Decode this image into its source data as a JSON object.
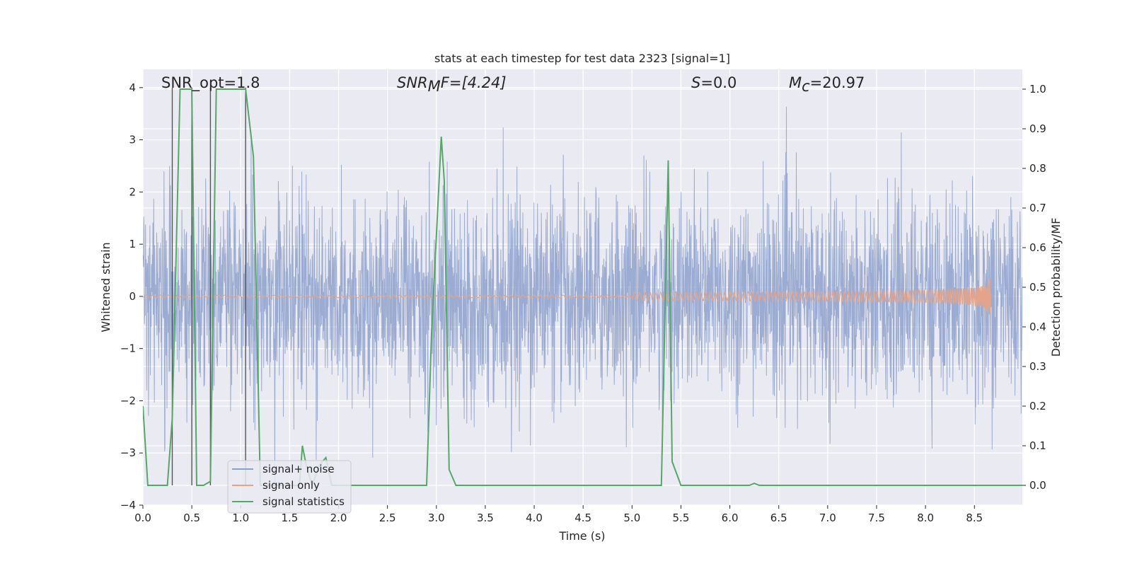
{
  "chart_data": {
    "type": "line",
    "title": "stats at each timestep for test data 2323 [signal=1]",
    "xlabel": "Time (s)",
    "ylabel_left": "Whitened strain",
    "ylabel_right": "Detection probability/MF",
    "xlim": [
      0.0,
      8.99
    ],
    "ylim_left": [
      -4.0,
      4.35
    ],
    "ylim_right": [
      -0.05,
      1.05
    ],
    "x_ticks": [
      0.0,
      0.5,
      1.0,
      1.5,
      2.0,
      2.5,
      3.0,
      3.5,
      4.0,
      4.5,
      5.0,
      5.5,
      6.0,
      6.5,
      7.0,
      7.5,
      8.0,
      8.5
    ],
    "x_tick_labels": [
      "0.0",
      "0.5",
      "1.0",
      "1.5",
      "2.0",
      "2.5",
      "3.0",
      "3.5",
      "4.0",
      "4.5",
      "5.0",
      "5.5",
      "6.0",
      "6.5",
      "7.0",
      "7.5",
      "8.0",
      "8.5"
    ],
    "y_ticks_left": [
      -4,
      -3,
      -2,
      -1,
      0,
      1,
      2,
      3,
      4
    ],
    "y_tick_labels_left": [
      "−4",
      "−3",
      "−2",
      "−1",
      "0",
      "1",
      "2",
      "3",
      "4"
    ],
    "y_ticks_right": [
      0.0,
      0.1,
      0.2,
      0.3,
      0.4,
      0.5,
      0.6,
      0.7,
      0.8,
      0.9,
      1.0
    ],
    "y_tick_labels_right": [
      "0.0",
      "0.1",
      "0.2",
      "0.3",
      "0.4",
      "0.5",
      "0.6",
      "0.7",
      "0.8",
      "0.9",
      "1.0"
    ],
    "grid": true,
    "legend_position": "lower-left",
    "legend": [
      "signal+ noise",
      "signal only",
      "signal statistics"
    ],
    "annotations": {
      "snr_opt": "SNR_opt=1.8",
      "snr_mf_base": "SNR",
      "snr_mf_sub": "M",
      "snr_mf_tail": "F=[4.24]",
      "s_base": "S",
      "s_tail": "=0.0",
      "mc_base": "M",
      "mc_sub": "c",
      "mc_tail": "=20.97"
    },
    "vertical_markers_x": [
      0.3,
      0.5,
      0.69,
      1.05
    ],
    "series": [
      {
        "name": "signal+ noise",
        "axis": "left",
        "color": "#8da0cb",
        "approx_envelope": {
          "typical_range": [
            -2.2,
            2.4
          ],
          "extremes": [
            -3.6,
            4.0
          ]
        }
      },
      {
        "name": "signal only",
        "axis": "left",
        "color": "#e4a48a",
        "chirp": {
          "start_x": 0.0,
          "end_x": 8.67,
          "peak_amplitude": 0.35
        }
      },
      {
        "name": "signal statistics",
        "axis": "right",
        "color": "#55a868",
        "x": [
          0.0,
          0.05,
          0.25,
          0.3,
          0.38,
          0.5,
          0.55,
          0.62,
          0.69,
          0.75,
          1.05,
          1.13,
          1.2,
          1.3,
          1.4,
          1.5,
          1.6,
          1.63,
          1.67,
          1.73,
          1.8,
          1.87,
          1.93,
          2.0,
          2.5,
          2.9,
          2.95,
          3.05,
          3.08,
          3.13,
          3.2,
          3.3,
          4.0,
          5.0,
          5.3,
          5.37,
          5.41,
          5.5,
          5.6,
          6.0,
          6.2,
          6.25,
          6.3,
          7.0,
          8.0,
          8.99
        ],
        "y": [
          0.2,
          0.0,
          0.0,
          0.17,
          1.0,
          1.0,
          0.0,
          0.0,
          0.01,
          1.0,
          1.0,
          0.83,
          0.0,
          0.0,
          0.0,
          0.0,
          0.0,
          0.1,
          0.05,
          0.0,
          0.05,
          0.07,
          0.0,
          0.0,
          0.0,
          0.0,
          0.38,
          0.88,
          0.77,
          0.04,
          0.0,
          0.0,
          0.0,
          0.0,
          0.0,
          0.82,
          0.06,
          0.0,
          0.0,
          0.0,
          0.0,
          0.005,
          0.0,
          0.0,
          0.0,
          0.0
        ]
      }
    ]
  }
}
